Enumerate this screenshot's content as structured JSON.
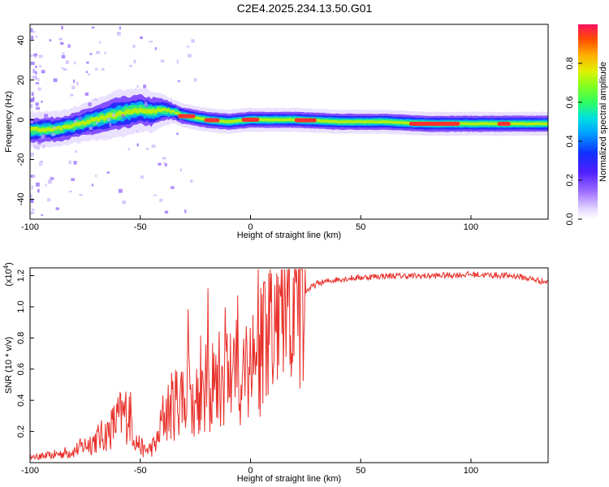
{
  "title": "C2E4.2025.234.13.50.G01",
  "colors": {
    "snr_line": "#e8302a",
    "frame": "#000000",
    "ridge_core": "#ff3030"
  },
  "chart_data": [
    {
      "type": "heatmap",
      "title": "C2E4.2025.234.13.50.G01",
      "xlabel": "Height of straight line (km)",
      "ylabel": "Frequency (Hz)",
      "xlim": [
        -100,
        135
      ],
      "ylim": [
        -50,
        48
      ],
      "xticks": [
        -100,
        -50,
        0,
        50,
        100
      ],
      "yticks": [
        -40,
        -20,
        0,
        20,
        40
      ],
      "colorbar": {
        "label": "Normalized spectral amplitude",
        "range": [
          0,
          1
        ],
        "ticks": [
          "0.0",
          "0.2",
          "0.4",
          "0.6",
          "0.8"
        ]
      },
      "ridge_center_hz": {
        "x": [
          -100,
          -90,
          -80,
          -70,
          -60,
          -50,
          -45,
          -40,
          -35,
          -30,
          -20,
          -10,
          0,
          10,
          20,
          40,
          60,
          80,
          100,
          120,
          135
        ],
        "y": [
          -5,
          -5,
          -3,
          0,
          3,
          5,
          4,
          5,
          4,
          2,
          0,
          -1,
          0,
          0,
          0,
          -1,
          -1,
          -2,
          -2,
          -2,
          -2
        ]
      },
      "ridge_halfwidth_hz": {
        "x": [
          -100,
          -80,
          -60,
          -45,
          -35,
          -25,
          0,
          50,
          100,
          135
        ],
        "y": [
          6,
          6,
          8,
          7,
          4,
          4,
          4,
          4,
          4,
          4
        ]
      }
    },
    {
      "type": "line",
      "xlabel": "Height of straight line (km)",
      "ylabel": "SNR (10 * v/v)",
      "multiplier": "(x10",
      "multiplier_exp": "4",
      "multiplier_close": ")",
      "xlim": [
        -100,
        135
      ],
      "ylim": [
        0,
        1.25
      ],
      "xticks": [
        -100,
        -50,
        0,
        50,
        100
      ],
      "yticks": [
        "0.2",
        "0.4",
        "0.6",
        "0.8",
        "1.0",
        "1.2"
      ],
      "ytick_values": [
        0.2,
        0.4,
        0.6,
        0.8,
        1.0,
        1.2
      ],
      "series": [
        {
          "name": "SNR",
          "x": [
            -100,
            -90,
            -80,
            -75,
            -70,
            -65,
            -60,
            -55,
            -52,
            -48,
            -45,
            -42,
            -40,
            -35,
            -30,
            -25,
            -20,
            -15,
            -10,
            -5,
            0,
            5,
            10,
            15,
            20,
            25,
            30,
            40,
            50,
            60,
            80,
            100,
            120,
            135
          ],
          "y": [
            0.03,
            0.05,
            0.08,
            0.12,
            0.16,
            0.2,
            0.3,
            0.35,
            0.15,
            0.08,
            0.1,
            0.15,
            0.3,
            0.4,
            0.5,
            0.45,
            0.5,
            0.55,
            0.6,
            0.62,
            0.7,
            0.75,
            0.85,
            0.95,
            1.05,
            1.1,
            1.15,
            1.18,
            1.19,
            1.2,
            1.2,
            1.21,
            1.2,
            1.16
          ]
        }
      ]
    }
  ]
}
